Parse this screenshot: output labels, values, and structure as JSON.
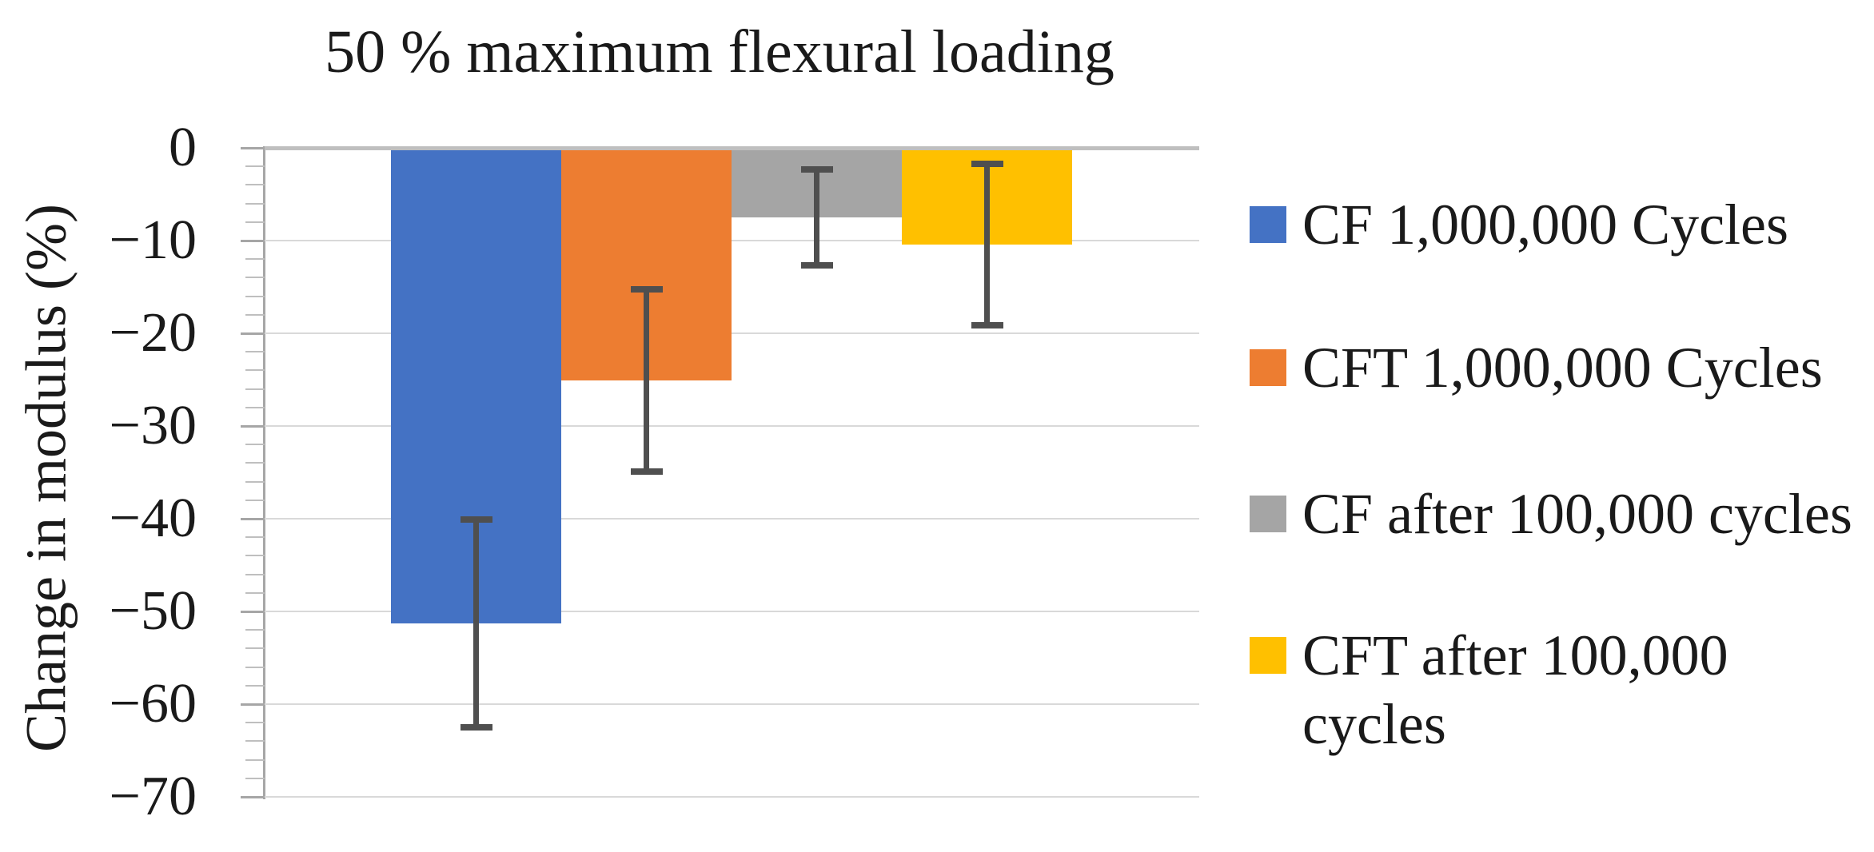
{
  "chart_data": {
    "type": "bar",
    "title": "50 % maximum flexural loading",
    "ylabel": "Change in modulus (%)",
    "ylim": [
      -70,
      0
    ],
    "ymajor_step": 10,
    "yminor_step": 2,
    "ytick_labels": [
      "0",
      "−10",
      "−20",
      "−30",
      "−40",
      "−50",
      "−60",
      "−70"
    ],
    "grid": true,
    "legend_position": "right",
    "categories": [
      "50 % maximum flexural loading"
    ],
    "series": [
      {
        "name": "CF 1,000,000 Cycles",
        "value": -51.3,
        "error": 11.2,
        "color": "#4472C4",
        "legend_lines": [
          "CF 1,000,000 Cycles"
        ]
      },
      {
        "name": "CFT 1,000,000 Cycles",
        "value": -25.1,
        "error": 9.8,
        "color": "#ED7D31",
        "legend_lines": [
          "CFT 1,000,000 Cycles"
        ]
      },
      {
        "name": "CF after 100,000 cycles",
        "value": -7.5,
        "error": 5.2,
        "color": "#A5A5A5",
        "legend_lines": [
          "CF after 100,000 cycles"
        ]
      },
      {
        "name": "CFT after 100,000 cycles",
        "value": -10.4,
        "error": 8.7,
        "color": "#FFC000",
        "legend_lines": [
          "CFT after 100,000",
          "cycles"
        ]
      }
    ],
    "colors": {
      "error_bar": "#4f4f4f",
      "gridline": "#D9D9D9",
      "zero_line": "#BFBFBF",
      "axis_line": "#A6A6A6",
      "text": "#1a1a1a",
      "background": "#ffffff"
    }
  }
}
